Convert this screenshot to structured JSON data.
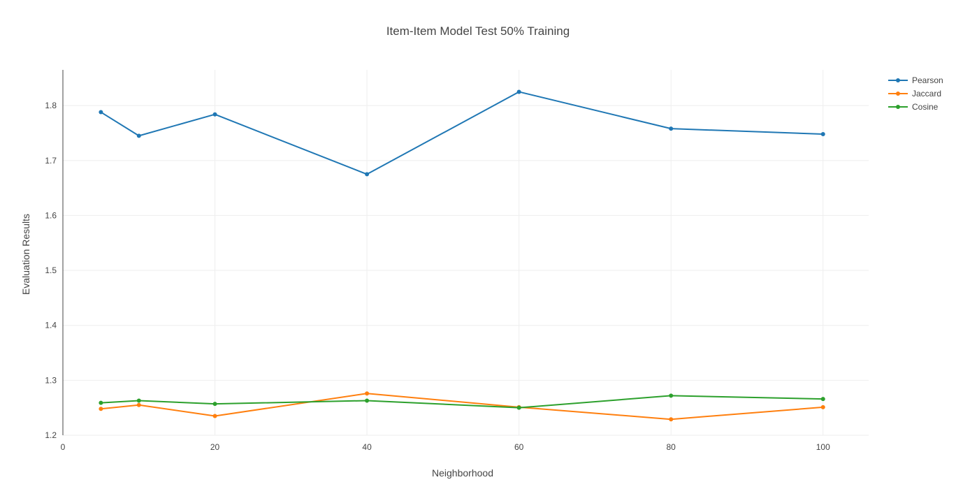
{
  "chart_data": {
    "type": "line",
    "title": "Item-Item Model Test 50% Training",
    "xlabel": "Neighborhood",
    "ylabel": "Evaluation Results",
    "xlim": [
      0,
      106
    ],
    "ylim": [
      1.2,
      1.865
    ],
    "xticks": [
      0,
      20,
      40,
      60,
      80,
      100
    ],
    "yticks": [
      1.2,
      1.3,
      1.4,
      1.5,
      1.6,
      1.7,
      1.8
    ],
    "x": [
      5,
      10,
      20,
      40,
      60,
      80,
      100
    ],
    "grid": true,
    "legend_position": "top-right",
    "series": [
      {
        "name": "Pearson",
        "color": "#1f77b4",
        "values": [
          1.788,
          1.745,
          1.784,
          1.675,
          1.825,
          1.758,
          1.748
        ]
      },
      {
        "name": "Jaccard",
        "color": "#ff7f0e",
        "values": [
          1.248,
          1.255,
          1.235,
          1.276,
          1.251,
          1.229,
          1.251
        ]
      },
      {
        "name": "Cosine",
        "color": "#2ca02c",
        "values": [
          1.259,
          1.263,
          1.257,
          1.263,
          1.25,
          1.272,
          1.266
        ]
      }
    ]
  }
}
